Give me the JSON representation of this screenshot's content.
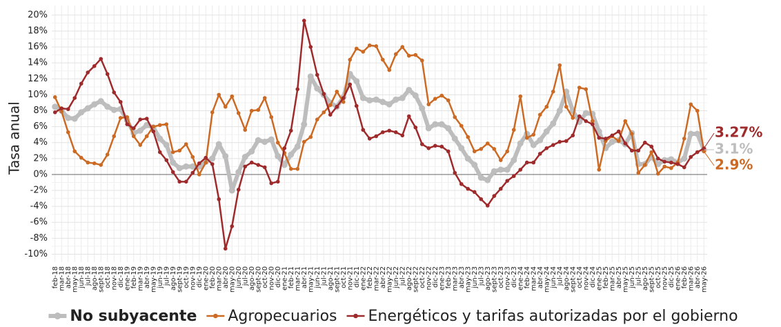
{
  "chart_data": {
    "type": "line",
    "ylabel": "Tasa anual",
    "categories": [
      "feb-18",
      "mar-18",
      "abr-18",
      "may-18",
      "jun-18",
      "jul-18",
      "ago-18",
      "sept-18",
      "oct-18",
      "nov-18",
      "dic-18",
      "ene-19",
      "feb-19",
      "mar-19",
      "abr-19",
      "may-19",
      "jun-19",
      "jul-19",
      "ago-19",
      "sept-19",
      "oct-19",
      "nov-19",
      "dic-19",
      "ene-20",
      "feb-20",
      "mar-20",
      "abr-20",
      "may-20",
      "jun-20",
      "jul-20",
      "ago-20",
      "sept-20",
      "oct-20",
      "nov-20",
      "dic-20",
      "ene-21",
      "feb-21",
      "mar-21",
      "abr-21",
      "may-21",
      "jun-21",
      "jul-21",
      "ago-21",
      "sept-21",
      "oct-21",
      "nov-21",
      "dic-21",
      "ene-22",
      "feb-22",
      "mar-22",
      "abr-22",
      "may-22",
      "jun-22",
      "jul-22",
      "ago-22",
      "sept-22",
      "oct-22",
      "nov-22",
      "dic-22",
      "ene-23",
      "feb-23",
      "mar-23",
      "abr-23",
      "may-23",
      "jun-23",
      "jul-23",
      "ago-23",
      "sept-23",
      "oct-23",
      "nov-23",
      "dic-23",
      "ene-24",
      "feb-24",
      "mar-24",
      "abr-24",
      "may-24",
      "jun-24",
      "jul-24",
      "ago-24",
      "sept-24",
      "oct-24",
      "nov-24",
      "dic-24",
      "ene-25",
      "feb-25",
      "mar-25",
      "abr-25",
      "may-25",
      "jun-25",
      "jul-25",
      "ago-25",
      "sept-25",
      "oct-25",
      "nov-25",
      "dic-25",
      "ene-26",
      "feb-26",
      "mar-26",
      "abr-26",
      "may-26"
    ],
    "series": [
      {
        "name": "No subyacente",
        "color": "#bdbdbd",
        "width": 6,
        "dot": 4.5,
        "end_label": "3.1%",
        "values": [
          8.5,
          8.0,
          7.1,
          7.0,
          7.8,
          8.3,
          8.8,
          9.2,
          8.5,
          8.1,
          8.2,
          6.8,
          5.2,
          5.5,
          6.2,
          5.9,
          4.5,
          3.7,
          1.5,
          0.8,
          1.0,
          1.0,
          1.0,
          1.6,
          2.0,
          3.8,
          2.3,
          -2.0,
          0.3,
          2.2,
          2.9,
          4.3,
          4.1,
          4.4,
          2.3,
          1.2,
          2.5,
          3.5,
          6.3,
          12.3,
          10.8,
          10.0,
          9.0,
          8.5,
          9.7,
          12.6,
          11.7,
          9.6,
          9.3,
          9.4,
          9.1,
          8.8,
          9.4,
          9.6,
          10.6,
          9.9,
          8.3,
          5.8,
          6.3,
          6.3,
          5.8,
          4.5,
          3.3,
          2.0,
          1.2,
          -0.4,
          -0.7,
          0.4,
          0.6,
          0.6,
          1.8,
          3.9,
          5.1,
          3.7,
          4.3,
          5.4,
          6.4,
          8.0,
          10.4,
          8.0,
          6.6,
          7.7,
          7.6,
          5.4,
          3.3,
          4.1,
          4.3,
          3.8,
          5.2,
          1.3,
          1.3,
          2.2,
          1.3,
          1.8,
          1.9,
          1.5,
          2.0,
          5.1,
          5.1,
          3.1
        ]
      },
      {
        "name": "Agropecuarios",
        "color": "#cc6a24",
        "width": 2.5,
        "dot": 2.8,
        "end_label": "2.9%",
        "values": [
          9.7,
          7.9,
          5.3,
          2.9,
          2.1,
          1.5,
          1.4,
          1.2,
          2.5,
          4.8,
          7.1,
          7.2,
          4.8,
          3.7,
          4.8,
          6.0,
          6.2,
          6.3,
          2.8,
          3.0,
          3.8,
          2.2,
          0.0,
          1.5,
          7.8,
          10.0,
          8.5,
          9.8,
          7.7,
          5.6,
          8.0,
          8.1,
          9.6,
          7.2,
          4.0,
          2.7,
          0.7,
          0.7,
          4.1,
          4.7,
          6.9,
          7.8,
          8.7,
          10.4,
          9.1,
          14.4,
          15.8,
          15.4,
          16.2,
          16.1,
          14.4,
          13.1,
          15.1,
          16.0,
          14.9,
          15.0,
          14.3,
          8.8,
          9.5,
          9.9,
          9.3,
          7.2,
          6.1,
          4.7,
          2.9,
          3.2,
          3.9,
          3.2,
          1.8,
          2.9,
          5.6,
          9.8,
          4.6,
          5.0,
          7.5,
          8.5,
          10.4,
          13.7,
          8.5,
          7.1,
          10.9,
          10.7,
          6.7,
          0.6,
          4.2,
          4.8,
          4.2,
          6.7,
          5.1,
          0.2,
          1.2,
          2.8,
          0.1,
          1.0,
          0.8,
          1.5,
          4.5,
          8.8,
          8.0,
          2.9
        ]
      },
      {
        "name": "Energéticos y tarifas autorizadas por el gobierno",
        "color": "#9e2a2b",
        "width": 2.5,
        "dot": 2.8,
        "end_label": "3.27%",
        "values": [
          7.8,
          8.3,
          8.2,
          9.6,
          11.4,
          12.8,
          13.6,
          14.5,
          12.6,
          10.3,
          9.1,
          6.3,
          5.8,
          6.9,
          7.0,
          5.4,
          2.8,
          1.8,
          0.3,
          -0.9,
          -0.9,
          0.2,
          1.4,
          2.1,
          1.3,
          -3.1,
          -9.3,
          -6.5,
          -1.9,
          1.0,
          1.5,
          1.2,
          0.9,
          -1.1,
          -0.9,
          3.3,
          5.5,
          10.7,
          19.3,
          16.0,
          12.5,
          10.1,
          7.5,
          8.5,
          9.6,
          11.3,
          8.6,
          5.6,
          4.5,
          4.8,
          5.3,
          5.5,
          5.3,
          4.9,
          7.3,
          5.9,
          3.8,
          3.3,
          3.6,
          3.5,
          2.9,
          0.2,
          -1.2,
          -1.8,
          -2.2,
          -3.1,
          -3.9,
          -2.7,
          -1.8,
          -0.8,
          -0.2,
          0.6,
          1.5,
          1.5,
          2.6,
          3.3,
          3.7,
          4.1,
          4.2,
          4.9,
          7.3,
          6.7,
          6.3,
          4.6,
          4.5,
          4.9,
          5.4,
          3.9,
          3.0,
          3.0,
          4.0,
          3.5,
          2.0,
          1.6,
          1.5,
          1.3,
          0.9,
          2.2,
          2.8,
          3.27
        ]
      }
    ],
    "ylim": [
      -11,
      21.2
    ],
    "yticks": [
      {
        "value": -10,
        "label": "-10%"
      },
      {
        "value": -8,
        "label": "-8%"
      },
      {
        "value": -6,
        "label": "-6%"
      },
      {
        "value": -4,
        "label": "-4%"
      },
      {
        "value": -2,
        "label": "-2%"
      },
      {
        "value": 0,
        "label": "0%"
      },
      {
        "value": 2,
        "label": "2%"
      },
      {
        "value": 4,
        "label": "4%"
      },
      {
        "value": 6,
        "label": "6%"
      },
      {
        "value": 8,
        "label": "8%"
      },
      {
        "value": 10,
        "label": "10%"
      },
      {
        "value": 12,
        "label": "12%"
      },
      {
        "value": 14,
        "label": "14%"
      },
      {
        "value": 16,
        "label": "16%"
      },
      {
        "value": 18,
        "label": "18%"
      },
      {
        "value": 20,
        "label": "20%"
      }
    ],
    "grid": true,
    "legend": "bottom"
  }
}
